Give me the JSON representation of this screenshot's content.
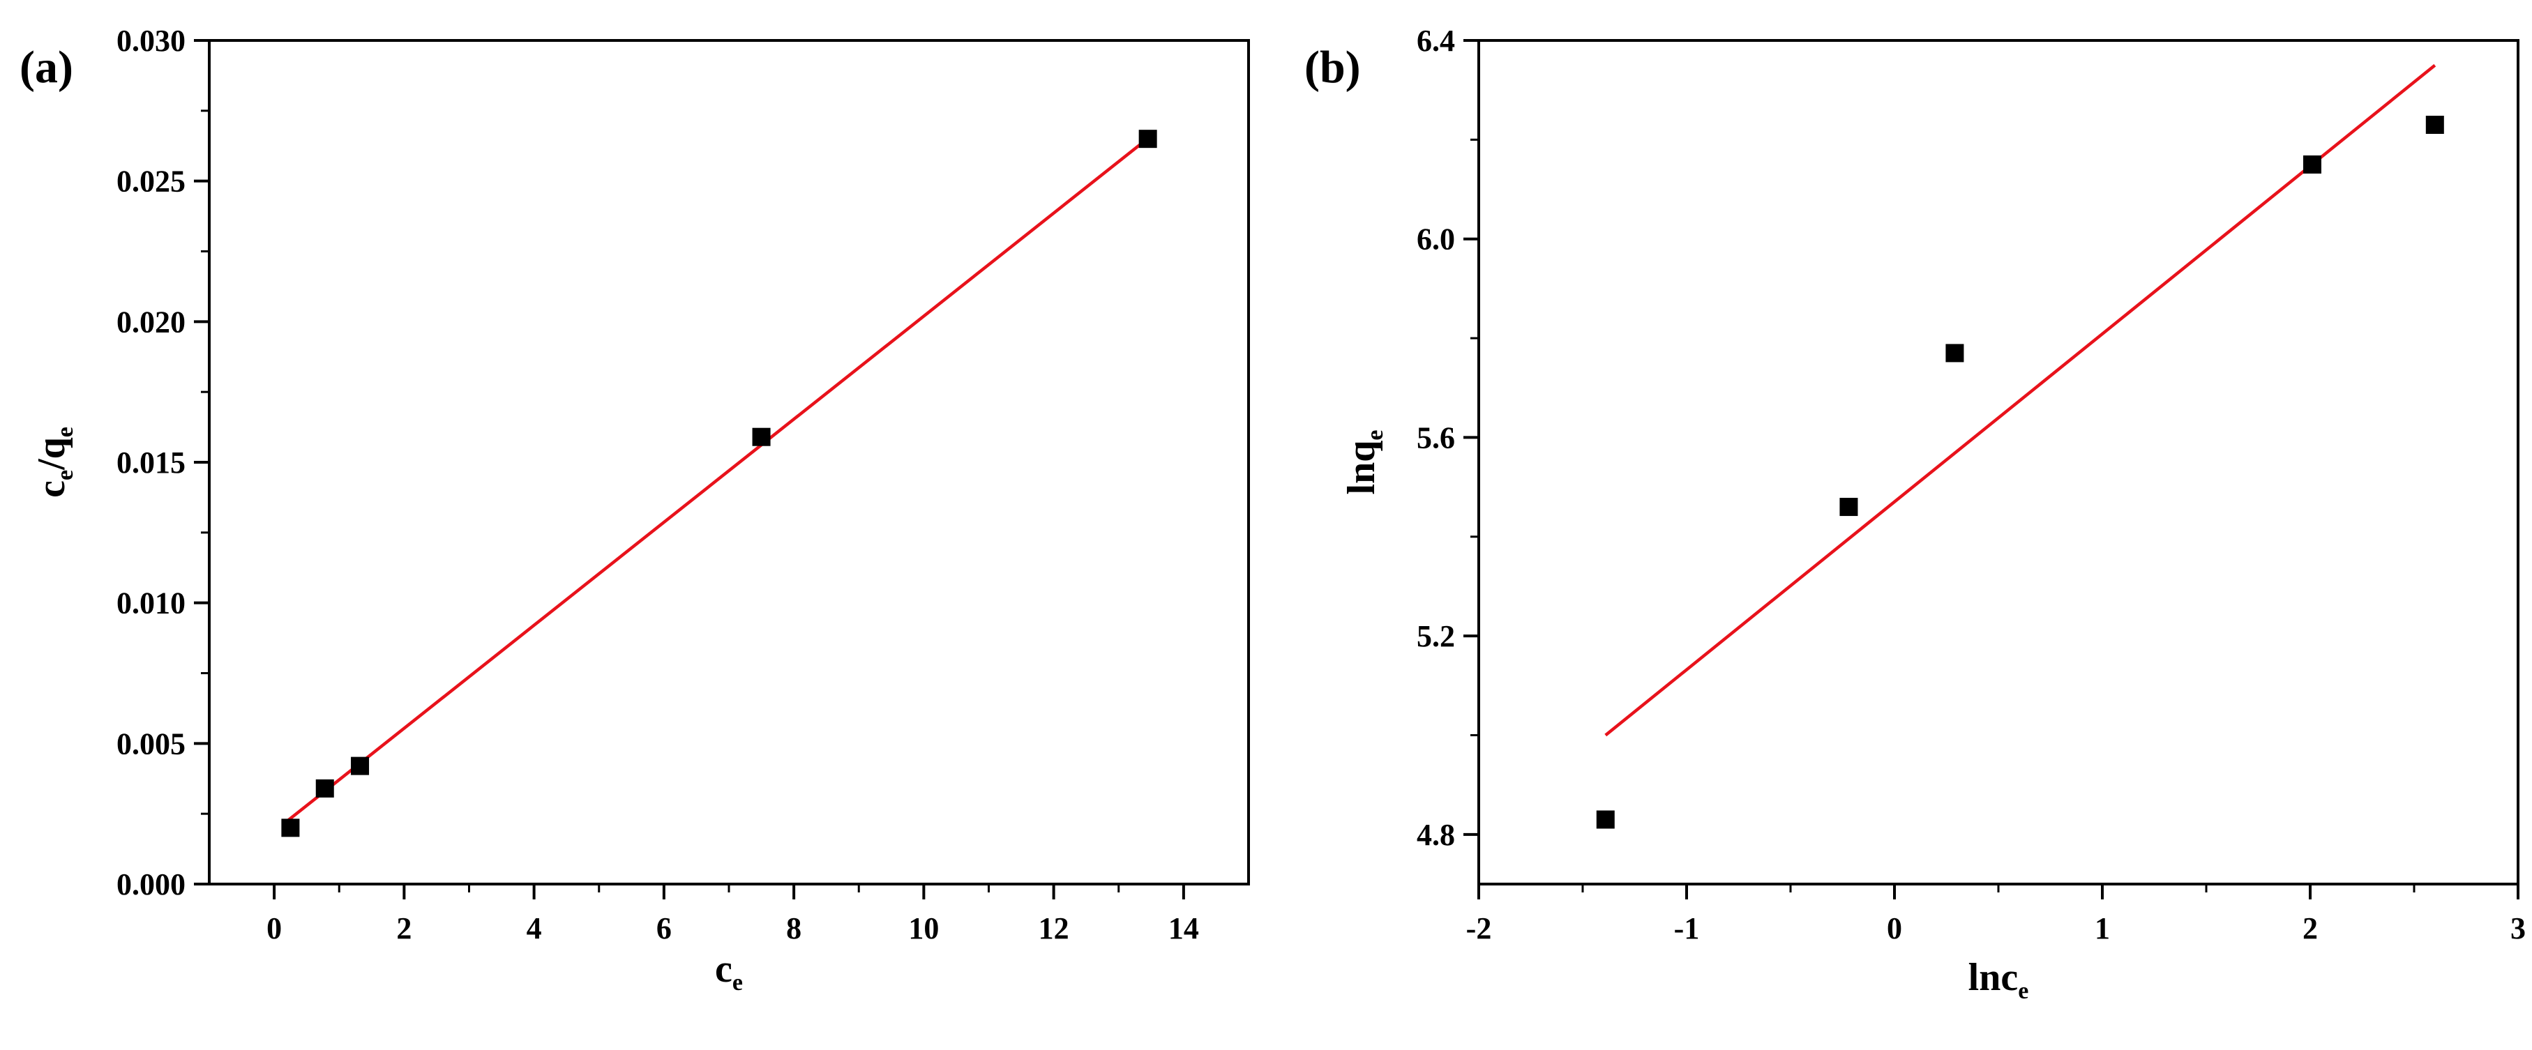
{
  "chart_data": [
    {
      "panel_label": "(a)",
      "type": "scatter",
      "title": "",
      "xlabel": {
        "base": "c",
        "sub": "e"
      },
      "ylabel": {
        "parts": [
          {
            "base": "c",
            "sub": "e"
          },
          {
            "base": "/q",
            "sub": "e"
          }
        ]
      },
      "xlim": [
        -1,
        15
      ],
      "ylim": [
        0,
        0.03
      ],
      "xticks": [
        0,
        2,
        4,
        6,
        8,
        10,
        12,
        14
      ],
      "xtick_labels": [
        "0",
        "2",
        "4",
        "6",
        "8",
        "10",
        "12",
        "14"
      ],
      "yticks": [
        0,
        0.005,
        0.01,
        0.015,
        0.02,
        0.025,
        0.03
      ],
      "ytick_labels": [
        "0.000",
        "0.005",
        "0.010",
        "0.015",
        "0.020",
        "0.025",
        "0.030"
      ],
      "grid": false,
      "series": [
        {
          "kind": "points",
          "marker": "square",
          "color": "#000000",
          "x": [
            0.25,
            0.78,
            1.32,
            7.5,
            13.45
          ],
          "y": [
            0.002,
            0.0034,
            0.0042,
            0.0159,
            0.0265
          ]
        },
        {
          "kind": "fit-line",
          "color": "#e8121b",
          "x": [
            0.15,
            13.55
          ],
          "y": [
            0.00215,
            0.0267
          ]
        }
      ]
    },
    {
      "panel_label": "(b)",
      "type": "scatter",
      "title": "",
      "xlabel": {
        "base": "lnc",
        "sub": "e"
      },
      "ylabel": {
        "parts": [
          {
            "base": "lnq",
            "sub": "e"
          }
        ]
      },
      "xlim": [
        -2,
        3
      ],
      "ylim": [
        4.7,
        6.4
      ],
      "xticks": [
        -2,
        -1,
        0,
        1,
        2,
        3
      ],
      "xtick_labels": [
        "-2",
        "-1",
        "0",
        "1",
        "2",
        "3"
      ],
      "yticks": [
        4.8,
        5.2,
        5.6,
        6.0,
        6.4
      ],
      "ytick_labels": [
        "4.8",
        "5.2",
        "5.6",
        "6.0",
        "6.4"
      ],
      "grid": false,
      "series": [
        {
          "kind": "points",
          "marker": "square",
          "color": "#000000",
          "x": [
            -1.39,
            -0.22,
            0.29,
            2.01,
            2.6
          ],
          "y": [
            4.83,
            5.46,
            5.77,
            6.15,
            6.23
          ]
        },
        {
          "kind": "fit-line",
          "color": "#e8121b",
          "x": [
            -1.39,
            2.6
          ],
          "y": [
            5.0,
            6.35
          ]
        }
      ]
    }
  ]
}
